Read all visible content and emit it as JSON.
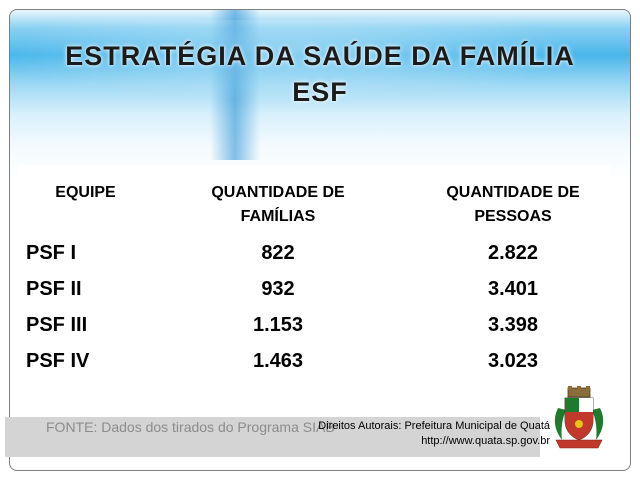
{
  "slide": {
    "title_line1": "ESTRATÉGIA DA SAÚDE DA FAMÍLIA",
    "title_line2": "ESF"
  },
  "table": {
    "headers": {
      "team": "EQUIPE",
      "families_line1": "QUANTIDADE DE",
      "families_line2": "FAMÍLIAS",
      "people_line1": "QUANTIDADE DE",
      "people_line2": "PESSOAS"
    },
    "rows": [
      {
        "team": "PSF I",
        "families": "822",
        "people": "2.822"
      },
      {
        "team": "PSF II",
        "families": "932",
        "people": "3.401"
      },
      {
        "team": "PSF III",
        "families": "1.153",
        "people": "3.398"
      },
      {
        "team": "PSF IV",
        "families": "1.463",
        "people": "3.023"
      }
    ]
  },
  "footer": {
    "source": "FONTE:  Dados dos tirados do Programa SIAB",
    "credits_line1": "Direitos Autorais: Prefeitura Municipal de Quatá",
    "credits_line2": "http://www.quata.sp.gov.br"
  },
  "colors": {
    "header_blue": "#49b6ea",
    "footer_gray": "#d4d4d4",
    "crest_green": "#1f7a2e",
    "crest_red": "#c0392b",
    "crest_yellow": "#e8c21e"
  },
  "icons": {
    "crest": "municipal-coat-of-arms-icon"
  }
}
